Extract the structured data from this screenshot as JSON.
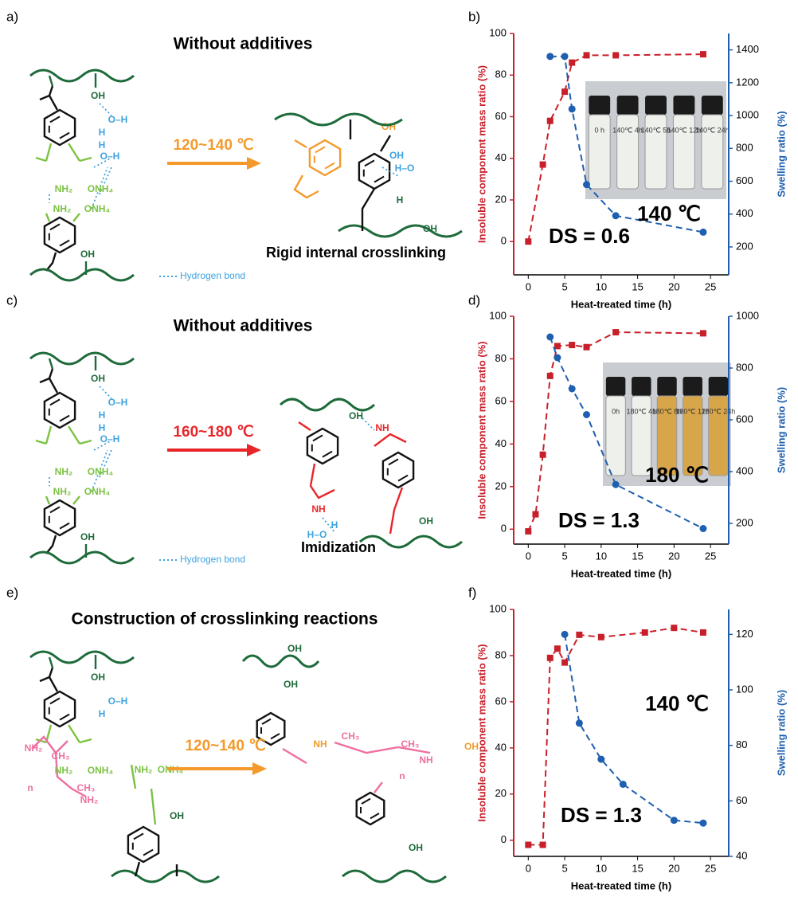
{
  "panel_labels": [
    "a)",
    "b)",
    "c)",
    "d)",
    "e)",
    "f)"
  ],
  "schemes": [
    {
      "title": "Without additives",
      "condition": "120~140 ℃",
      "product_label": "Rigid internal crosslinking",
      "legend": "Hydrogen bond",
      "labels": [
        "OH",
        "O–H",
        "H",
        "NH₂",
        "ONH₄",
        "H",
        "O–H",
        "NH₂",
        "ONH₄",
        "OH",
        "OH",
        "H–O",
        "H",
        "OH",
        "OH"
      ]
    },
    {
      "title": "Without additives",
      "condition": "160~180 ℃",
      "product_label": "Imidization",
      "legend": "Hydrogen bond",
      "labels": [
        "OH",
        "O–H",
        "H",
        "NH₂",
        "ONH₄",
        "H",
        "O–H",
        "NH₂",
        "ONH₄",
        "OH",
        "OH",
        "NH",
        "NH",
        "H–O",
        "H",
        "OH"
      ]
    },
    {
      "title": "Construction of crosslinking reactions",
      "condition": "120~140 ℃",
      "labels": [
        "OH",
        "O–H",
        "H",
        "NH₂",
        "ONH₄",
        "NH₂",
        "CH₃",
        "n",
        "CH₃",
        "NH₂",
        "NH₂",
        "ONH₄",
        "OH",
        "OH",
        "OH",
        "NH",
        "CH₃",
        "CH₃",
        "n",
        "NH",
        "OH",
        "OH"
      ]
    }
  ],
  "chart_data": [
    {
      "type": "line",
      "x_label": "Heat-treated time (h)",
      "y_label": "Insoluble component mass ratio (%)",
      "y2_label": "Swelling ratio (%)",
      "annotations": [
        "140 ℃",
        "DS = 0.6"
      ],
      "inset_labels": [
        "0 h",
        "140℃ 4h",
        "140℃ 5h",
        "140℃ 12h",
        "140℃ 24h"
      ],
      "xlim": [
        -2,
        27.5
      ],
      "xticks": [
        0,
        5,
        10,
        15,
        20,
        25
      ],
      "ylim": [
        -16,
        100
      ],
      "yticks": [
        0,
        20,
        40,
        60,
        80,
        100
      ],
      "y2lim": [
        30,
        1500
      ],
      "y2ticks": [
        200,
        400,
        600,
        800,
        1000,
        1200,
        1400
      ],
      "series": [
        {
          "color": "#c8202a",
          "marker": "square",
          "x": [
            0,
            2,
            3,
            5,
            6,
            8,
            12,
            24
          ],
          "values": [
            0,
            37,
            58,
            72,
            86,
            89.5,
            89.5,
            90
          ]
        },
        {
          "color": "#1f5fb0",
          "marker": "circle",
          "axis": "y2",
          "x": [
            3,
            5,
            6,
            8,
            12,
            24
          ],
          "values": [
            1360,
            1360,
            1040,
            580,
            390,
            290
          ]
        }
      ]
    },
    {
      "type": "line",
      "x_label": "Heat-treated time (h)",
      "y_label": "Insoluble component mass ratio (%)",
      "y2_label": "Swelling ratio (%)",
      "annotations": [
        "180 ℃",
        "DS = 1.3"
      ],
      "inset_labels": [
        "0h",
        "180℃ 4h",
        "180℃ 8h",
        "180℃ 12h",
        "180℃ 24h"
      ],
      "xlim": [
        -2,
        27.5
      ],
      "xticks": [
        0,
        5,
        10,
        15,
        20,
        25
      ],
      "ylim": [
        -7,
        100
      ],
      "yticks": [
        0,
        20,
        40,
        60,
        80,
        100
      ],
      "y2lim": [
        120,
        1000
      ],
      "y2ticks": [
        200,
        400,
        600,
        800,
        1000
      ],
      "series": [
        {
          "color": "#c8202a",
          "marker": "square",
          "x": [
            0,
            1,
            2,
            3,
            4,
            6,
            8,
            12,
            24
          ],
          "values": [
            -1,
            7,
            35,
            72,
            86,
            86.5,
            85.5,
            92.5,
            92
          ]
        },
        {
          "color": "#1f5fb0",
          "marker": "circle",
          "axis": "y2",
          "x": [
            3,
            4,
            6,
            8,
            12,
            24
          ],
          "values": [
            920,
            840,
            720,
            620,
            350,
            180
          ]
        }
      ]
    },
    {
      "type": "line",
      "x_label": "Heat-treated time (h)",
      "y_label": "Insoluble component mass ratio (%)",
      "y2_label": "Swelling ratio (%)",
      "annotations": [
        "140 ℃",
        "DS = 1.3"
      ],
      "xlim": [
        -2,
        27.5
      ],
      "xticks": [
        0,
        5,
        10,
        15,
        20,
        25
      ],
      "ylim": [
        -7,
        100
      ],
      "yticks": [
        0,
        20,
        40,
        60,
        80,
        100
      ],
      "y2lim": [
        40,
        129
      ],
      "y2ticks": [
        40,
        60,
        80,
        100,
        120
      ],
      "series": [
        {
          "color": "#c8202a",
          "marker": "square",
          "x": [
            0,
            2,
            3,
            4,
            5,
            7,
            10,
            16,
            20,
            24
          ],
          "values": [
            -2,
            -2,
            79,
            83,
            77,
            89,
            88,
            90,
            92,
            90
          ]
        },
        {
          "color": "#1f5fb0",
          "marker": "circle",
          "axis": "y2",
          "x": [
            5,
            7,
            10,
            13,
            20,
            24
          ],
          "values": [
            120,
            88,
            75,
            66,
            53,
            52
          ]
        }
      ]
    }
  ]
}
